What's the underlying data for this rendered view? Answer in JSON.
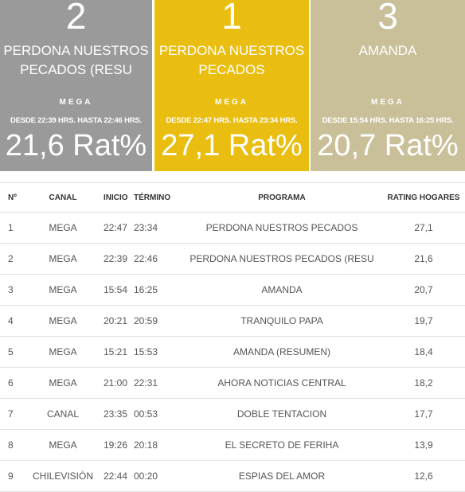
{
  "top_cards": [
    {
      "rank": "2",
      "program_lines": [
        "PERDONA NUESTROS",
        "PECADOS (RESU"
      ],
      "channel": "MEGA",
      "times": "DESDE 22:39 HRS. HASTA 22:46 HRS.",
      "rating": "21,6 Rat%",
      "color": "#9a9a9a"
    },
    {
      "rank": "1",
      "program_lines": [
        "PERDONA NUESTROS",
        "PECADOS"
      ],
      "channel": "MEGA",
      "times": "DESDE 22:47 HRS. HASTA 23:34 HRS.",
      "rating": "27,1 Rat%",
      "color": "#e9be10"
    },
    {
      "rank": "3",
      "program_lines": [
        "AMANDA",
        ""
      ],
      "channel": "MEGA",
      "times": "DESDE 15:54 HRS. HASTA 16:25 HRS.",
      "rating": "20,7 Rat%",
      "color": "#c9c09a"
    }
  ],
  "table": {
    "headers": {
      "n": "Nº",
      "channel": "CANAL",
      "start": "INICIO",
      "end": "TÉRMINO",
      "program": "PROGRAMA",
      "rating": "RATING HOGARES"
    },
    "rows": [
      {
        "n": "1",
        "channel": "MEGA",
        "start": "22:47",
        "end": "23:34",
        "program": "PERDONA NUESTROS PECADOS",
        "rating": "27,1"
      },
      {
        "n": "2",
        "channel": "MEGA",
        "start": "22:39",
        "end": "22:46",
        "program": "PERDONA NUESTROS PECADOS (RESU",
        "rating": "21,6"
      },
      {
        "n": "3",
        "channel": "MEGA",
        "start": "15:54",
        "end": "16:25",
        "program": "AMANDA",
        "rating": "20,7"
      },
      {
        "n": "4",
        "channel": "MEGA",
        "start": "20:21",
        "end": "20:59",
        "program": "TRANQUILO PAPA",
        "rating": "19,7"
      },
      {
        "n": "5",
        "channel": "MEGA",
        "start": "15:21",
        "end": "15:53",
        "program": "AMANDA (RESUMEN)",
        "rating": "18,4"
      },
      {
        "n": "6",
        "channel": "MEGA",
        "start": "21:00",
        "end": "22:31",
        "program": "AHORA NOTICIAS CENTRAL",
        "rating": "18,2"
      },
      {
        "n": "7",
        "channel": "CANAL",
        "start": "23:35",
        "end": "00:53",
        "program": "DOBLE TENTACION",
        "rating": "17,7"
      },
      {
        "n": "8",
        "channel": "MEGA",
        "start": "19:26",
        "end": "20:18",
        "program": "EL SECRETO DE FERIHA",
        "rating": "13,9"
      },
      {
        "n": "9",
        "channel": "CHILEVISIÓN",
        "start": "22:44",
        "end": "00:20",
        "program": "ESPIAS DEL AMOR",
        "rating": "12,6"
      }
    ]
  }
}
